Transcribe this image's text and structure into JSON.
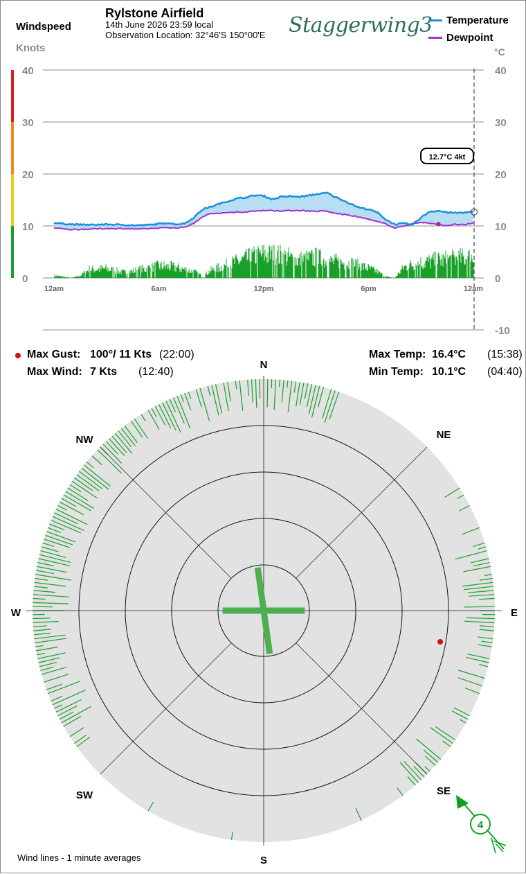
{
  "header": {
    "left_title": "Windspeed",
    "left_unit": "Knots",
    "station": "Rylstone Airfield",
    "datetime": "14th June 2026  23:59 local",
    "location": "Observation Location: 32°46'S 150°00'E",
    "brand": "Staggerwing3"
  },
  "legend": {
    "items": [
      {
        "label": "Temperature",
        "color": "#1a90d8"
      },
      {
        "label": "Dewpoint",
        "color": "#a030d0"
      }
    ],
    "right_unit": "°C"
  },
  "colors": {
    "wind": "#18a028",
    "wind_dark": "#10a020",
    "temp": "#1a90d8",
    "dew": "#a030d0",
    "fill": "#b8def4",
    "gust_marker": "#d01010",
    "band_red": "#d62020",
    "band_orange": "#ee8a20",
    "band_yellow": "#eec81a",
    "band_green": "#18a028"
  },
  "chart_data": {
    "type": "line",
    "x_ticks": [
      "12am",
      "6am",
      "12pm",
      "6pm",
      "12am"
    ],
    "x_range_hours": [
      0,
      24
    ],
    "wind_axis": {
      "ticks": [
        0,
        10,
        20,
        30,
        40
      ],
      "range": [
        0,
        40
      ],
      "unit": "Knots"
    },
    "temp_axis": {
      "ticks": [
        -10,
        0,
        10,
        20,
        30,
        40
      ],
      "range": [
        -10,
        40
      ],
      "unit": "°C"
    },
    "series": [
      {
        "name": "Temperature",
        "hours": [
          0,
          1,
          2,
          3,
          4,
          4.67,
          5.5,
          6,
          6.5,
          7,
          7.5,
          8,
          8.5,
          9,
          9.5,
          10,
          10.5,
          11,
          11.5,
          12,
          12.5,
          13,
          13.5,
          14,
          14.5,
          15,
          15.5,
          15.63,
          16,
          16.5,
          17,
          17.5,
          18,
          18.5,
          19,
          19.5,
          20,
          20.5,
          21,
          21.5,
          22,
          22.5,
          23,
          23.5,
          24
        ],
        "values": [
          10.6,
          10.3,
          10.2,
          10.3,
          10.2,
          10.1,
          10.2,
          10.4,
          10.6,
          10.3,
          10.5,
          11.6,
          13.2,
          13.7,
          14.3,
          14.8,
          15.3,
          15.5,
          15.9,
          15.8,
          15.1,
          15.6,
          15.7,
          15.6,
          15.8,
          16.1,
          16.3,
          16.4,
          15.7,
          15.0,
          14.2,
          13.5,
          13.2,
          12.6,
          11.2,
          10.3,
          10.5,
          10.2,
          11.6,
          12.8,
          12.9,
          12.6,
          12.5,
          12.6,
          12.7
        ]
      },
      {
        "name": "Dewpoint",
        "hours": [
          0,
          1,
          2,
          3,
          4,
          5,
          6,
          6.5,
          7,
          7.5,
          8,
          8.5,
          9,
          9.5,
          10,
          11,
          12,
          13,
          14,
          15,
          15.5,
          16,
          17,
          18,
          18.5,
          19,
          19.5,
          20,
          20.5,
          21,
          21.5,
          22,
          22.5,
          23,
          23.5,
          24
        ],
        "values": [
          9.6,
          9.3,
          9.4,
          9.5,
          9.5,
          9.4,
          9.6,
          9.7,
          9.6,
          9.8,
          10.5,
          11.8,
          12.4,
          12.4,
          12.6,
          12.7,
          13.0,
          12.9,
          13.0,
          12.8,
          12.9,
          12.5,
          12.0,
          11.3,
          10.8,
          10.4,
          9.6,
          10.0,
          10.4,
          10.7,
          10.5,
          10.2,
          10.1,
          10.3,
          10.2,
          10.6
        ]
      },
      {
        "name": "Windspeed",
        "hours": [
          0,
          1,
          1.5,
          2,
          3,
          4,
          5,
          6,
          7,
          8,
          8.5,
          9,
          10,
          11,
          12,
          13,
          14,
          15,
          16,
          17,
          18,
          18.5,
          19,
          19.5,
          20,
          20.5,
          21,
          22,
          23,
          24
        ],
        "values": [
          0.6,
          0,
          0.5,
          2.0,
          2.2,
          1.3,
          2.0,
          2.8,
          2.5,
          1.5,
          0.5,
          1.8,
          3.2,
          4.5,
          5.6,
          5.3,
          4.2,
          4.8,
          3.8,
          3.5,
          2.3,
          1.5,
          0.3,
          0,
          2.5,
          3.2,
          3.6,
          4.2,
          4.6,
          5.0
        ]
      }
    ],
    "current_readout": "12.7°C  4kt",
    "current": {
      "temp": 12.7,
      "wind": 4
    },
    "dewpoint_marker_hour": 22.0,
    "dewpoint_marker_value": 10.4
  },
  "stats": {
    "max_gust_label": "Max Gust:",
    "max_gust_value": "100°/ 11 Kts",
    "max_gust_time": "(22:00)",
    "max_wind_label": "Max Wind:",
    "max_wind_value": "7 Kts",
    "max_wind_time": "(12:40)",
    "max_temp_label": "Max Temp:",
    "max_temp_value": "16.4°C",
    "max_temp_time": "(15:38)",
    "min_temp_label": "Min Temp:",
    "min_temp_value": "10.1°C",
    "min_temp_time": "(04:40)"
  },
  "compass": {
    "labels": {
      "n": "N",
      "ne": "NE",
      "e": "E",
      "se": "SE",
      "s": "S",
      "sw": "SW",
      "w": "W",
      "nw": "NW"
    },
    "ring_count": 4,
    "gust_direction_deg": 100,
    "gust_speed_kts": 11,
    "current_wind_kts": "4",
    "current_wind_from_deg": 135,
    "cross_bars": [
      {
        "direction_deg": 90,
        "reach": 0.9
      },
      {
        "direction_deg": 270,
        "reach": 0.9
      },
      {
        "direction_deg": 352,
        "reach": 0.95
      },
      {
        "direction_deg": 172,
        "reach": 0.95
      }
    ],
    "wind_line_density": [
      {
        "from": 0,
        "to": 20,
        "weight": 0.85
      },
      {
        "from": 20,
        "to": 48,
        "weight": 0.08
      },
      {
        "from": 48,
        "to": 72,
        "weight": 0.1
      },
      {
        "from": 72,
        "to": 140,
        "weight": 0.75
      },
      {
        "from": 140,
        "to": 200,
        "weight": 0.06
      },
      {
        "from": 200,
        "to": 240,
        "weight": 0.08
      },
      {
        "from": 240,
        "to": 325,
        "weight": 0.95
      },
      {
        "from": 325,
        "to": 360,
        "weight": 0.85
      }
    ],
    "footnote": "Wind lines - 1 minute averages"
  }
}
